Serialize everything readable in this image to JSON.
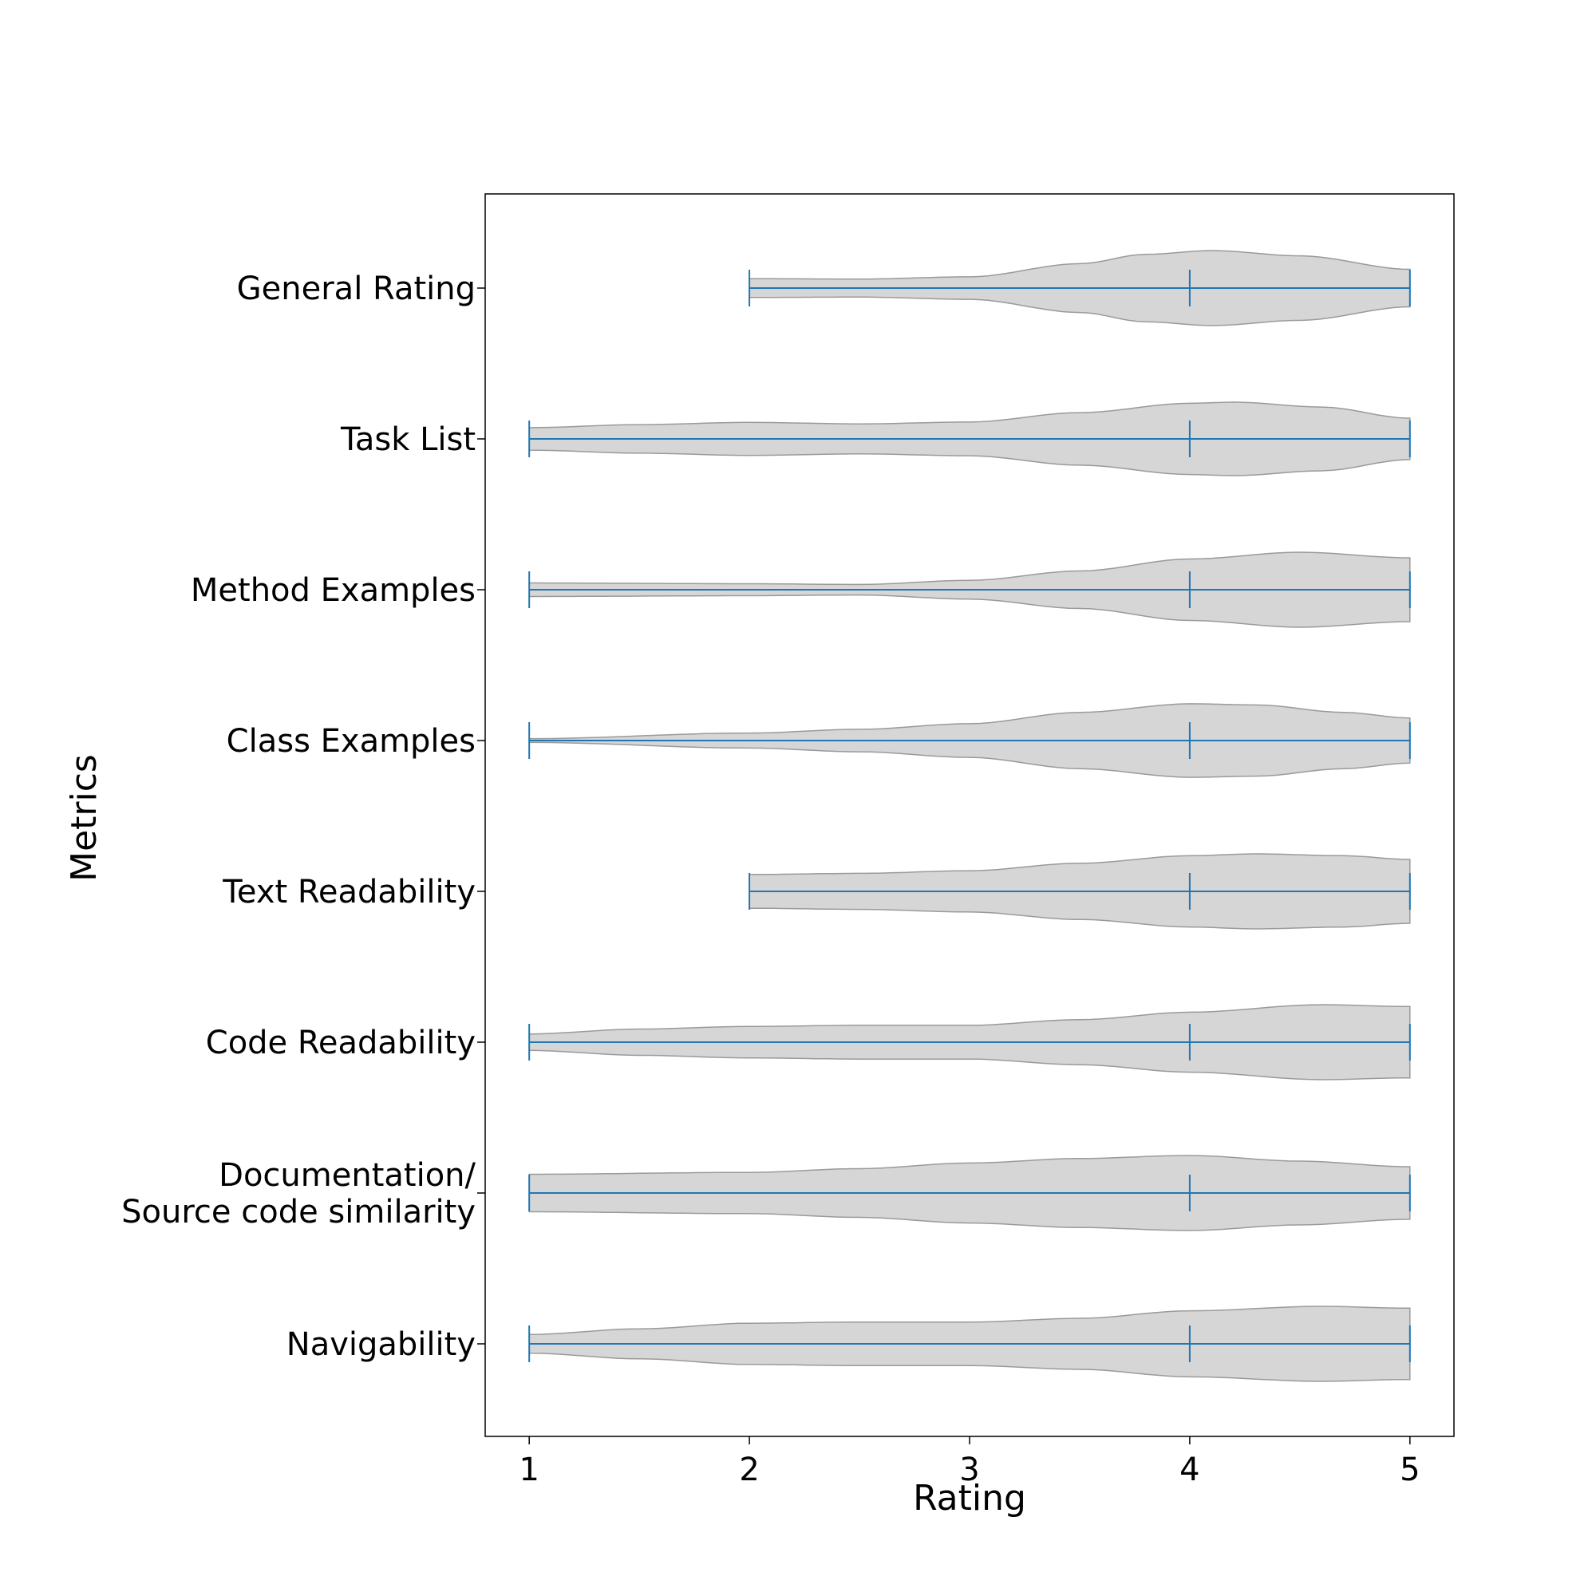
{
  "chart_data": {
    "type": "violin",
    "orientation": "horizontal",
    "xlabel": "Rating",
    "ylabel": "Metrics",
    "xlim": [
      0.8,
      5.2
    ],
    "xticks": [
      1,
      2,
      3,
      4,
      5
    ],
    "grid": false,
    "fill_color": "#d6d6d6",
    "edge_color": "#9a9a9a",
    "line_color": "#1f77b4",
    "categories": [
      {
        "label_lines": [
          "General Rating"
        ],
        "min": 2,
        "median": 4,
        "max": 5,
        "density": [
          [
            2.0,
            0.25
          ],
          [
            2.5,
            0.24
          ],
          [
            3.0,
            0.3
          ],
          [
            3.5,
            0.65
          ],
          [
            3.8,
            0.9
          ],
          [
            4.1,
            1.0
          ],
          [
            4.5,
            0.86
          ],
          [
            5.0,
            0.5
          ]
        ]
      },
      {
        "label_lines": [
          "Task List"
        ],
        "min": 1,
        "median": 4,
        "max": 5,
        "density": [
          [
            1.0,
            0.3
          ],
          [
            1.5,
            0.38
          ],
          [
            2.0,
            0.44
          ],
          [
            2.5,
            0.4
          ],
          [
            3.0,
            0.45
          ],
          [
            3.5,
            0.7
          ],
          [
            4.0,
            0.95
          ],
          [
            4.2,
            0.98
          ],
          [
            4.6,
            0.85
          ],
          [
            5.0,
            0.55
          ]
        ]
      },
      {
        "label_lines": [
          "Method Examples"
        ],
        "min": 1,
        "median": 4,
        "max": 5,
        "density": [
          [
            1.0,
            0.18
          ],
          [
            2.0,
            0.16
          ],
          [
            2.5,
            0.14
          ],
          [
            3.0,
            0.25
          ],
          [
            3.5,
            0.5
          ],
          [
            4.0,
            0.82
          ],
          [
            4.5,
            1.0
          ],
          [
            5.0,
            0.85
          ]
        ]
      },
      {
        "label_lines": [
          "Class Examples"
        ],
        "min": 1,
        "median": 4,
        "max": 5,
        "density": [
          [
            1.0,
            0.05
          ],
          [
            2.0,
            0.2
          ],
          [
            2.5,
            0.3
          ],
          [
            3.0,
            0.45
          ],
          [
            3.5,
            0.75
          ],
          [
            4.0,
            0.98
          ],
          [
            4.3,
            0.95
          ],
          [
            4.7,
            0.75
          ],
          [
            5.0,
            0.6
          ]
        ]
      },
      {
        "label_lines": [
          "Text Readability"
        ],
        "min": 2,
        "median": 4,
        "max": 5,
        "density": [
          [
            2.0,
            0.45
          ],
          [
            2.5,
            0.48
          ],
          [
            3.0,
            0.55
          ],
          [
            3.5,
            0.75
          ],
          [
            4.0,
            0.95
          ],
          [
            4.3,
            1.0
          ],
          [
            4.7,
            0.95
          ],
          [
            5.0,
            0.85
          ]
        ]
      },
      {
        "label_lines": [
          "Code Readability"
        ],
        "min": 1,
        "median": 4,
        "max": 5,
        "density": [
          [
            1.0,
            0.22
          ],
          [
            1.5,
            0.35
          ],
          [
            2.0,
            0.42
          ],
          [
            2.5,
            0.45
          ],
          [
            3.0,
            0.45
          ],
          [
            3.5,
            0.6
          ],
          [
            4.0,
            0.8
          ],
          [
            4.6,
            1.0
          ],
          [
            5.0,
            0.95
          ]
        ]
      },
      {
        "label_lines": [
          "Documentation/",
          "Source code similarity"
        ],
        "min": 1,
        "median": 4,
        "max": 5,
        "density": [
          [
            1.0,
            0.5
          ],
          [
            2.0,
            0.55
          ],
          [
            2.5,
            0.65
          ],
          [
            3.0,
            0.8
          ],
          [
            3.5,
            0.92
          ],
          [
            4.0,
            1.0
          ],
          [
            4.5,
            0.85
          ],
          [
            5.0,
            0.7
          ]
        ]
      },
      {
        "label_lines": [
          "Navigability"
        ],
        "min": 1,
        "median": 4,
        "max": 5,
        "density": [
          [
            1.0,
            0.25
          ],
          [
            1.5,
            0.4
          ],
          [
            2.0,
            0.55
          ],
          [
            2.5,
            0.58
          ],
          [
            3.0,
            0.58
          ],
          [
            3.5,
            0.68
          ],
          [
            4.0,
            0.88
          ],
          [
            4.6,
            1.0
          ],
          [
            5.0,
            0.95
          ]
        ]
      }
    ]
  }
}
